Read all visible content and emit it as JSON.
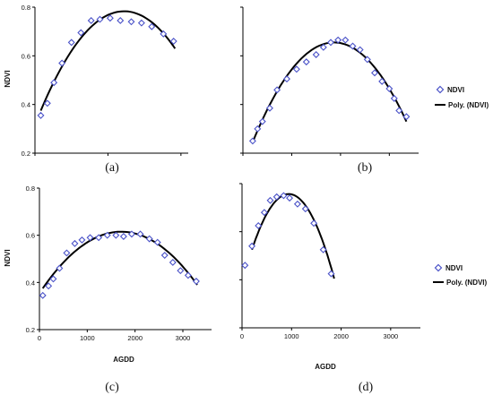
{
  "colors": {
    "marker": "#4a52c8",
    "fit_line": "#000000",
    "axis": "#000000"
  },
  "legend": {
    "marker_label": "NDVI",
    "line_label": "Poly. (NDVI)",
    "marker_icon": "diamond-icon",
    "line_icon": "line-icon"
  },
  "chart_data": [
    {
      "id": "a",
      "panel_label": "(a)",
      "type": "scatter",
      "xlabel": "",
      "ylabel": "NDVI",
      "xlim": [
        0,
        2100
      ],
      "ylim": [
        0.2,
        0.8
      ],
      "yticks": [
        "0.2",
        "0.4",
        "0.6",
        "0.8"
      ],
      "xticks": [],
      "points": [
        [
          80,
          0.355
        ],
        [
          170,
          0.405
        ],
        [
          260,
          0.49
        ],
        [
          370,
          0.57
        ],
        [
          500,
          0.655
        ],
        [
          630,
          0.695
        ],
        [
          770,
          0.745
        ],
        [
          890,
          0.75
        ],
        [
          1030,
          0.755
        ],
        [
          1170,
          0.745
        ],
        [
          1320,
          0.74
        ],
        [
          1460,
          0.735
        ],
        [
          1600,
          0.72
        ],
        [
          1760,
          0.69
        ],
        [
          1900,
          0.66
        ]
      ],
      "fit": {
        "type": "poly2",
        "x_range": [
          80,
          1920
        ],
        "y_at": [
          [
            80,
            0.375
          ],
          [
            1060,
            0.775
          ],
          [
            1920,
            0.63
          ]
        ]
      }
    },
    {
      "id": "b",
      "panel_label": "(b)",
      "type": "scatter",
      "xlabel": "",
      "ylabel": "",
      "xlim": [
        0,
        3600
      ],
      "ylim": [
        0.2,
        0.8
      ],
      "yticks": [],
      "xticks": [],
      "points": [
        [
          200,
          0.25
        ],
        [
          300,
          0.3
        ],
        [
          400,
          0.33
        ],
        [
          550,
          0.385
        ],
        [
          700,
          0.46
        ],
        [
          900,
          0.505
        ],
        [
          1100,
          0.545
        ],
        [
          1300,
          0.575
        ],
        [
          1500,
          0.605
        ],
        [
          1650,
          0.635
        ],
        [
          1800,
          0.655
        ],
        [
          1950,
          0.665
        ],
        [
          2100,
          0.665
        ],
        [
          2250,
          0.64
        ],
        [
          2400,
          0.625
        ],
        [
          2550,
          0.585
        ],
        [
          2700,
          0.53
        ],
        [
          2850,
          0.495
        ],
        [
          3000,
          0.465
        ],
        [
          3100,
          0.425
        ],
        [
          3200,
          0.375
        ],
        [
          3350,
          0.35
        ]
      ],
      "fit": {
        "type": "poly2",
        "x_range": [
          200,
          3350
        ],
        "y_at": [
          [
            200,
            0.245
          ],
          [
            1850,
            0.655
          ],
          [
            3350,
            0.33
          ]
        ]
      },
      "legend_shown": true
    },
    {
      "id": "c",
      "panel_label": "(c)",
      "type": "scatter",
      "xlabel": "AGDD",
      "ylabel": "NDVI",
      "xlim": [
        0,
        3600
      ],
      "ylim": [
        0.2,
        0.8
      ],
      "yticks": [
        "0.2",
        "0.4",
        "0.6",
        "0.8"
      ],
      "xticks": [
        "0",
        "1000",
        "2000",
        "3000"
      ],
      "points": [
        [
          70,
          0.345
        ],
        [
          190,
          0.385
        ],
        [
          290,
          0.415
        ],
        [
          420,
          0.46
        ],
        [
          570,
          0.525
        ],
        [
          740,
          0.565
        ],
        [
          890,
          0.58
        ],
        [
          1060,
          0.59
        ],
        [
          1240,
          0.59
        ],
        [
          1420,
          0.6
        ],
        [
          1600,
          0.6
        ],
        [
          1760,
          0.595
        ],
        [
          1930,
          0.605
        ],
        [
          2110,
          0.605
        ],
        [
          2300,
          0.585
        ],
        [
          2470,
          0.57
        ],
        [
          2620,
          0.515
        ],
        [
          2790,
          0.485
        ],
        [
          2950,
          0.45
        ],
        [
          3110,
          0.43
        ],
        [
          3280,
          0.405
        ]
      ],
      "fit": {
        "type": "poly2",
        "x_range": [
          70,
          3300
        ],
        "y_at": [
          [
            70,
            0.375
          ],
          [
            1680,
            0.615
          ],
          [
            3300,
            0.39
          ]
        ]
      }
    },
    {
      "id": "d",
      "panel_label": "(d)",
      "type": "scatter",
      "xlabel": "AGDD",
      "ylabel": "",
      "xlim": [
        0,
        3600
      ],
      "ylim": [
        0.2,
        0.8
      ],
      "yticks": [],
      "xticks": [
        "0",
        "1000",
        "2000",
        "3000"
      ],
      "points": [
        [
          60,
          0.46
        ],
        [
          200,
          0.54
        ],
        [
          330,
          0.625
        ],
        [
          450,
          0.68
        ],
        [
          570,
          0.73
        ],
        [
          700,
          0.745
        ],
        [
          840,
          0.75
        ],
        [
          960,
          0.74
        ],
        [
          1120,
          0.715
        ],
        [
          1280,
          0.695
        ],
        [
          1450,
          0.635
        ],
        [
          1640,
          0.525
        ],
        [
          1800,
          0.425
        ]
      ],
      "fit": {
        "type": "poly2",
        "x_range": [
          200,
          1860
        ],
        "y_at": [
          [
            200,
            0.525
          ],
          [
            880,
            0.755
          ],
          [
            1860,
            0.405
          ]
        ]
      },
      "legend_shown": true
    }
  ]
}
